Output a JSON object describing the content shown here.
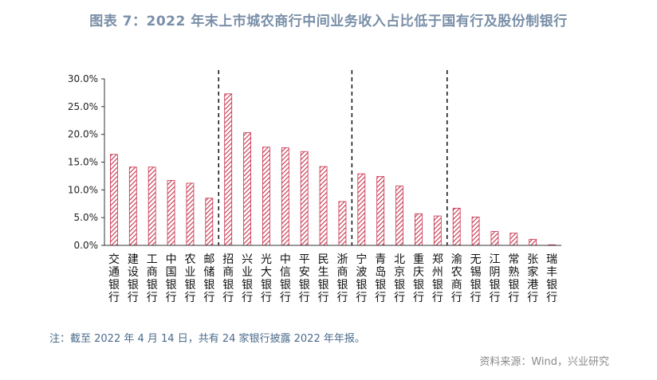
{
  "header": {
    "title": "图表 7：2022 年末上市城农商行中间业务收入占比低于国有行及股份制银行"
  },
  "footer": {
    "note": "注：截至 2022 年 4 月 14 日，共有 24 家银行披露 2022 年年报。",
    "source": "资料来源：Wind，兴业研究"
  },
  "colors": {
    "bar": "#c8304a",
    "title": "#7a8fa8",
    "note": "#4a6a8a",
    "source": "#8a8a8a"
  },
  "chart_data": {
    "type": "bar",
    "title": "图表 7：2022 年末上市城农商行中间业务收入占比低于国有行及股份制银行",
    "xlabel": "",
    "ylabel": "",
    "ylim": [
      0,
      30
    ],
    "yticks": [
      "0.0%",
      "5.0%",
      "10.0%",
      "15.0%",
      "20.0%",
      "25.0%",
      "30.0%"
    ],
    "bar_pattern": "diagonal-hatch",
    "grid": false,
    "categories": [
      "交通银行",
      "建设银行",
      "工商银行",
      "中国银行",
      "农业银行",
      "邮储银行",
      "招商银行",
      "兴业银行",
      "光大银行",
      "中信银行",
      "平安银行",
      "民生银行",
      "浙商银行",
      "宁波银行",
      "青岛银行",
      "北京银行",
      "重庆银行",
      "郑州银行",
      "渝农商行",
      "无锡银行",
      "江阴银行",
      "常熟银行",
      "张家港行",
      "瑞丰银行"
    ],
    "values": [
      16.4,
      14.1,
      14.1,
      11.7,
      11.2,
      8.5,
      27.3,
      20.3,
      17.7,
      17.6,
      16.9,
      14.2,
      7.9,
      12.9,
      12.4,
      10.7,
      5.7,
      5.3,
      6.7,
      5.1,
      2.5,
      2.2,
      1.1,
      0.1
    ],
    "group_separators_after_index": [
      5,
      12,
      17
    ],
    "separator_style": "dashed"
  }
}
